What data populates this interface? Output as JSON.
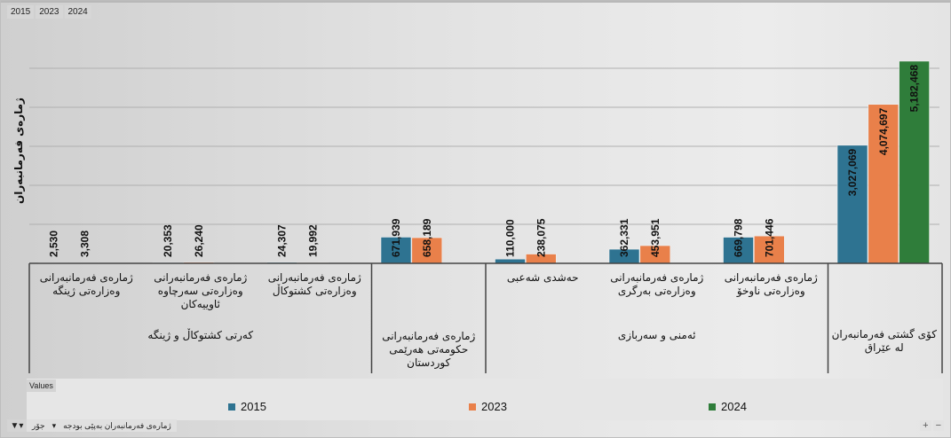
{
  "filter_chips": [
    "2015",
    "2023",
    "2024"
  ],
  "colors": {
    "2015": "#2e7391",
    "2023": "#e9804a",
    "2024": "#2f7d3a"
  },
  "chart_data": {
    "type": "bar",
    "title": "",
    "xlabel": "",
    "ylabel": "ژمارەی فەرمانبەران",
    "ylim": [
      0,
      5000000
    ],
    "grid": true,
    "legend_position": "bottom",
    "categories": [
      "ژمارەی فەرمانبەرانی وەزارەتی ژینگە",
      "ژمارەی فەرمانبەرانی وەزارەتی سەرچاوە ئاوییەکان",
      "ژمارەی فەرمانبەرانی وەزارەتی کشتوکاڵ",
      "ژمارەی فەرمانبەرانی حکومەتی هەرێمی کوردستان",
      "حەشدی شەعبی",
      "ژمارەی فەرمانبەرانی وەزارەتی بەرگری",
      "ژمارەی فەرمانبەرانی وەزارەتی ناوخۆ",
      "کۆی گشتی فەرمانبەران لە عێراق"
    ],
    "groups": [
      {
        "label": "کەرتی کشتوکاڵ و ژینگە",
        "categories": [
          0,
          1,
          2
        ]
      },
      {
        "label": "",
        "categories": [
          3
        ]
      },
      {
        "label": "ئەمنی و سەربازی",
        "categories": [
          4,
          5,
          6
        ]
      },
      {
        "label": "",
        "categories": [
          7
        ]
      }
    ],
    "series": [
      {
        "name": "2015",
        "values": [
          2530,
          20353,
          24307,
          671939,
          110000,
          362331,
          669798,
          3027069
        ],
        "labels": [
          "2,530",
          "20,353",
          "24,307",
          "671,939",
          "110,000",
          "362,331",
          "669,798",
          "3,027,069"
        ]
      },
      {
        "name": "2023",
        "values": [
          3308,
          26240,
          19992,
          658189,
          238075,
          453951,
          701446,
          4074697
        ],
        "labels": [
          "3,308",
          "26,240",
          "19,992",
          "658,189",
          "238,075",
          "453,951",
          "701,446",
          "4,074,697"
        ]
      },
      {
        "name": "2024",
        "values": [
          null,
          null,
          null,
          null,
          null,
          null,
          null,
          5182468
        ],
        "labels": [
          "",
          "",
          "",
          "",
          "",
          "",
          "",
          "5,182,468"
        ]
      }
    ]
  },
  "values_tag": "Values",
  "bottom_bar": {
    "field_label": "ژمارەی فەرمانبەران بەپێی بودجە",
    "field2": "جۆر"
  },
  "zoom_controls": {
    "plus": "+",
    "minus": "−"
  }
}
